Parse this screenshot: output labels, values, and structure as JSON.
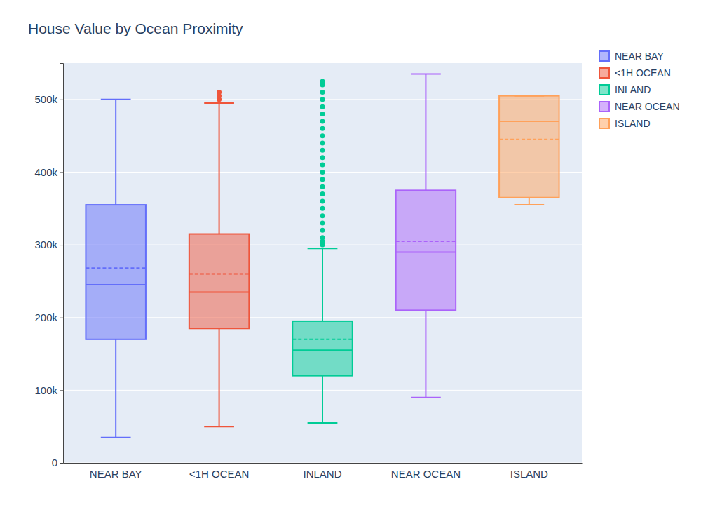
{
  "chart_data": {
    "type": "box",
    "title": "House Value by Ocean Proximity",
    "categories": [
      "NEAR BAY",
      "<1H OCEAN",
      "INLAND",
      "NEAR OCEAN",
      "ISLAND"
    ],
    "series": [
      {
        "name": "NEAR BAY",
        "color": "#636efa",
        "min": 35000,
        "q1": 170000,
        "median": 245000,
        "mean": 268000,
        "q3": 355000,
        "max": 500000,
        "outliers": []
      },
      {
        "name": "<1H OCEAN",
        "color": "#ef553b",
        "min": 50000,
        "q1": 185000,
        "median": 235000,
        "mean": 260000,
        "q3": 315000,
        "max": 495000,
        "outliers": [
          500000,
          505000,
          510000
        ]
      },
      {
        "name": "INLAND",
        "color": "#00cc96",
        "min": 55000,
        "q1": 120000,
        "median": 155000,
        "mean": 170000,
        "q3": 195000,
        "max": 295000,
        "outliers": [
          300000,
          305000,
          310000,
          320000,
          330000,
          340000,
          350000,
          360000,
          370000,
          380000,
          390000,
          400000,
          410000,
          420000,
          430000,
          440000,
          450000,
          460000,
          470000,
          480000,
          490000,
          500000,
          510000,
          520000,
          525000
        ]
      },
      {
        "name": "NEAR OCEAN",
        "color": "#ab63fa",
        "min": 90000,
        "q1": 210000,
        "median": 290000,
        "mean": 305000,
        "q3": 375000,
        "max": 535000,
        "outliers": []
      },
      {
        "name": "ISLAND",
        "color": "#ffa15a",
        "min": 355000,
        "q1": 365000,
        "median": 470000,
        "mean": 445000,
        "q3": 505000,
        "max": 505000,
        "outliers": []
      }
    ],
    "ylim": [
      0,
      550000
    ],
    "yticks": [
      0,
      {
        "value": 100000,
        "label": "100k"
      },
      {
        "value": 200000,
        "label": "200k"
      },
      {
        "value": 300000,
        "label": "300k"
      },
      {
        "value": 400000,
        "label": "400k"
      },
      {
        "value": 500000,
        "label": "500k"
      }
    ],
    "grid": true,
    "legend": "top right"
  }
}
